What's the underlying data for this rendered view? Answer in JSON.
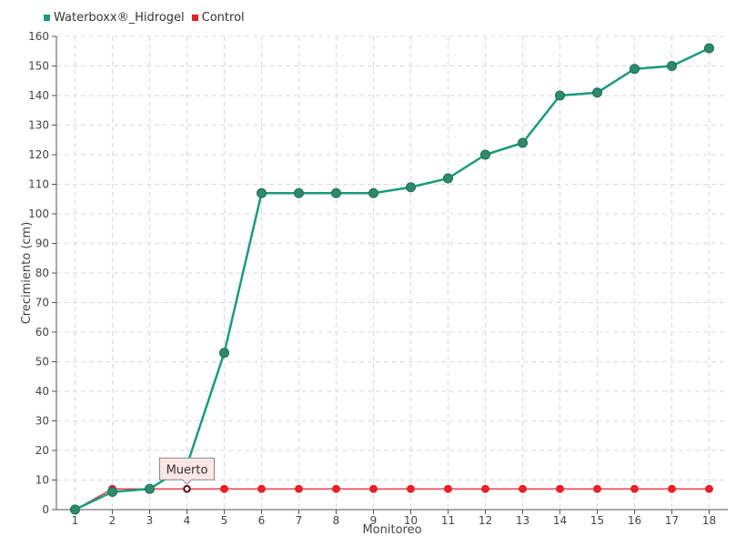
{
  "legend": {
    "series1_label": "Waterboxx®_Hidrogel",
    "series2_label": "Control"
  },
  "colors": {
    "series1": "#1a9b7c",
    "series1_marker": "#2e8b6a",
    "series2": "#e8202a",
    "grid": "#d9d9d9",
    "tooltip_bg": "#fde6e6"
  },
  "tooltip": {
    "text": "Muerto",
    "category": "4"
  },
  "chart_data": {
    "type": "line",
    "xlabel": "Monitoreo",
    "ylabel": "Crecimiento (cm)",
    "categories": [
      "1",
      "2",
      "3",
      "4",
      "5",
      "6",
      "7",
      "8",
      "9",
      "10",
      "11",
      "12",
      "13",
      "14",
      "15",
      "16",
      "17",
      "18"
    ],
    "ylim": [
      0,
      160
    ],
    "yticks": [
      0,
      10,
      20,
      30,
      40,
      50,
      60,
      70,
      80,
      90,
      100,
      110,
      120,
      130,
      140,
      150,
      160
    ],
    "grid": true,
    "legend_position": "top-left",
    "series": [
      {
        "name": "Waterboxx®_Hidrogel",
        "values": [
          0,
          6,
          7,
          15,
          53,
          107,
          107,
          107,
          107,
          109,
          112,
          120,
          124,
          140,
          141,
          149,
          150,
          156
        ]
      },
      {
        "name": "Control",
        "values": [
          0,
          7,
          7,
          7,
          7,
          7,
          7,
          7,
          7,
          7,
          7,
          7,
          7,
          7,
          7,
          7,
          7,
          7
        ]
      }
    ]
  }
}
